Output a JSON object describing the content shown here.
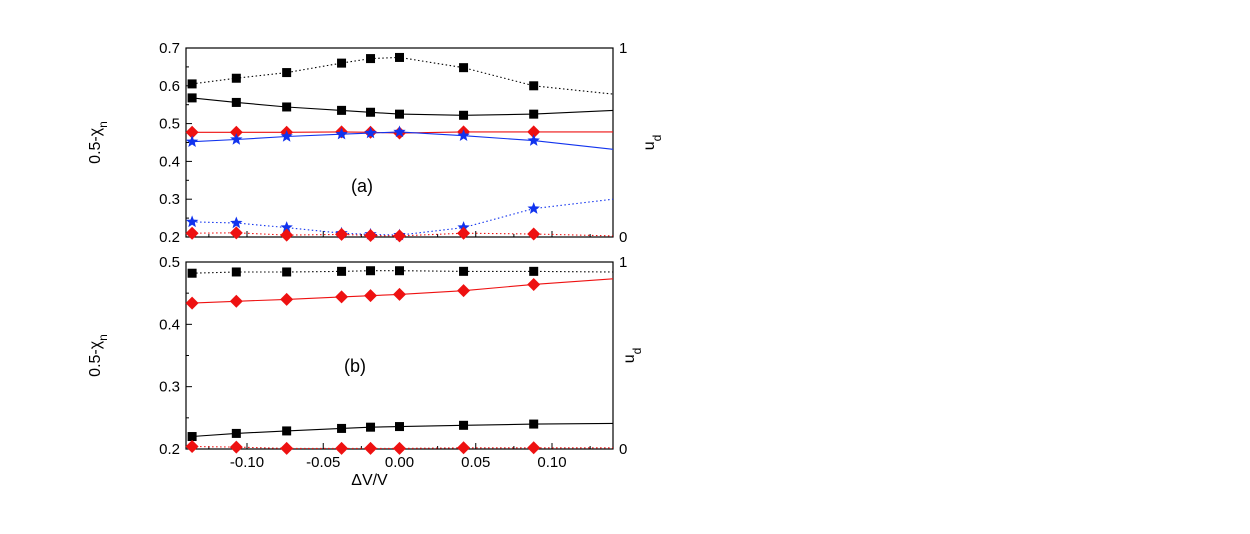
{
  "chart_data": [
    {
      "type": "scatter",
      "panel_label": "(a)",
      "ylabel_left": "0.5-χn",
      "ylabel_right": "ud",
      "xlim": [
        -0.14,
        0.14
      ],
      "ylim_left": [
        0.2,
        0.7
      ],
      "yticks_left": [
        0.2,
        0.3,
        0.4,
        0.5,
        0.6,
        0.7
      ],
      "ylim_right": [
        0,
        1
      ],
      "yticks_right": [
        0,
        1
      ],
      "x": [
        -0.136,
        -0.107,
        -0.074,
        -0.038,
        -0.019,
        0.0,
        0.042,
        0.088
      ],
      "series": [
        {
          "marker": "square",
          "color": "#000000",
          "line": "dotted",
          "axis": "left",
          "values": [
            0.605,
            0.62,
            0.635,
            0.66,
            0.672,
            0.675,
            0.648,
            0.6
          ],
          "fit_end": 0.578
        },
        {
          "marker": "square",
          "color": "#000000",
          "line": "solid",
          "axis": "left",
          "values": [
            0.568,
            0.556,
            0.544,
            0.535,
            0.53,
            0.525,
            0.522,
            0.525
          ],
          "fit_end": 0.535
        },
        {
          "marker": "diamond",
          "color": "#ee1111",
          "line": "solid",
          "axis": "left",
          "values": [
            0.477,
            0.477,
            0.477,
            0.478,
            0.477,
            0.475,
            0.478,
            0.478
          ],
          "fit_end": 0.478
        },
        {
          "marker": "star",
          "color": "#1133ee",
          "line": "solid",
          "axis": "left",
          "values": [
            0.452,
            0.458,
            0.466,
            0.472,
            0.475,
            0.478,
            0.468,
            0.455
          ],
          "fit_end": 0.432
        },
        {
          "marker": "star",
          "color": "#1133ee",
          "line": "dotted",
          "axis": "left",
          "values": [
            0.24,
            0.237,
            0.225,
            0.21,
            0.207,
            0.205,
            0.225,
            0.275
          ],
          "fit_end": 0.3
        },
        {
          "marker": "diamond",
          "color": "#ee1111",
          "line": "dotted",
          "axis": "left",
          "values": [
            0.21,
            0.211,
            0.205,
            0.207,
            0.204,
            0.203,
            0.21,
            0.208
          ],
          "fit_end": 0.203
        }
      ]
    },
    {
      "type": "scatter",
      "panel_label": "(b)",
      "ylabel_left": "0.5-χn",
      "ylabel_right": "ud",
      "xlabel": "ΔV/V",
      "xlim": [
        -0.14,
        0.14
      ],
      "xticks": [
        -0.1,
        -0.05,
        0.0,
        0.05,
        0.1
      ],
      "xtick_labels": [
        "-0.10",
        "-0.05",
        "0.00",
        "0.05",
        "0.10"
      ],
      "ylim_left": [
        0.2,
        0.5
      ],
      "yticks_left": [
        0.2,
        0.3,
        0.4,
        0.5
      ],
      "ylim_right": [
        0,
        1
      ],
      "yticks_right": [
        0,
        1
      ],
      "x": [
        -0.136,
        -0.107,
        -0.074,
        -0.038,
        -0.019,
        0.0,
        0.042,
        0.088
      ],
      "series": [
        {
          "marker": "square",
          "color": "#000000",
          "line": "dotted",
          "axis": "left",
          "values": [
            0.482,
            0.484,
            0.484,
            0.485,
            0.486,
            0.486,
            0.485,
            0.485
          ],
          "fit_end": 0.484
        },
        {
          "marker": "diamond",
          "color": "#ee1111",
          "line": "solid",
          "axis": "left",
          "values": [
            0.434,
            0.437,
            0.44,
            0.444,
            0.446,
            0.448,
            0.454,
            0.464
          ],
          "fit_end": 0.473
        },
        {
          "marker": "square",
          "color": "#000000",
          "line": "solid",
          "axis": "left",
          "values": [
            0.22,
            0.225,
            0.229,
            0.233,
            0.235,
            0.236,
            0.238,
            0.24
          ],
          "fit_end": 0.241
        },
        {
          "marker": "diamond",
          "color": "#ee1111",
          "line": "dotted",
          "axis": "left",
          "values": [
            0.204,
            0.203,
            0.201,
            0.201,
            0.201,
            0.201,
            0.202,
            0.202
          ],
          "fit_end": 0.202
        }
      ]
    }
  ]
}
